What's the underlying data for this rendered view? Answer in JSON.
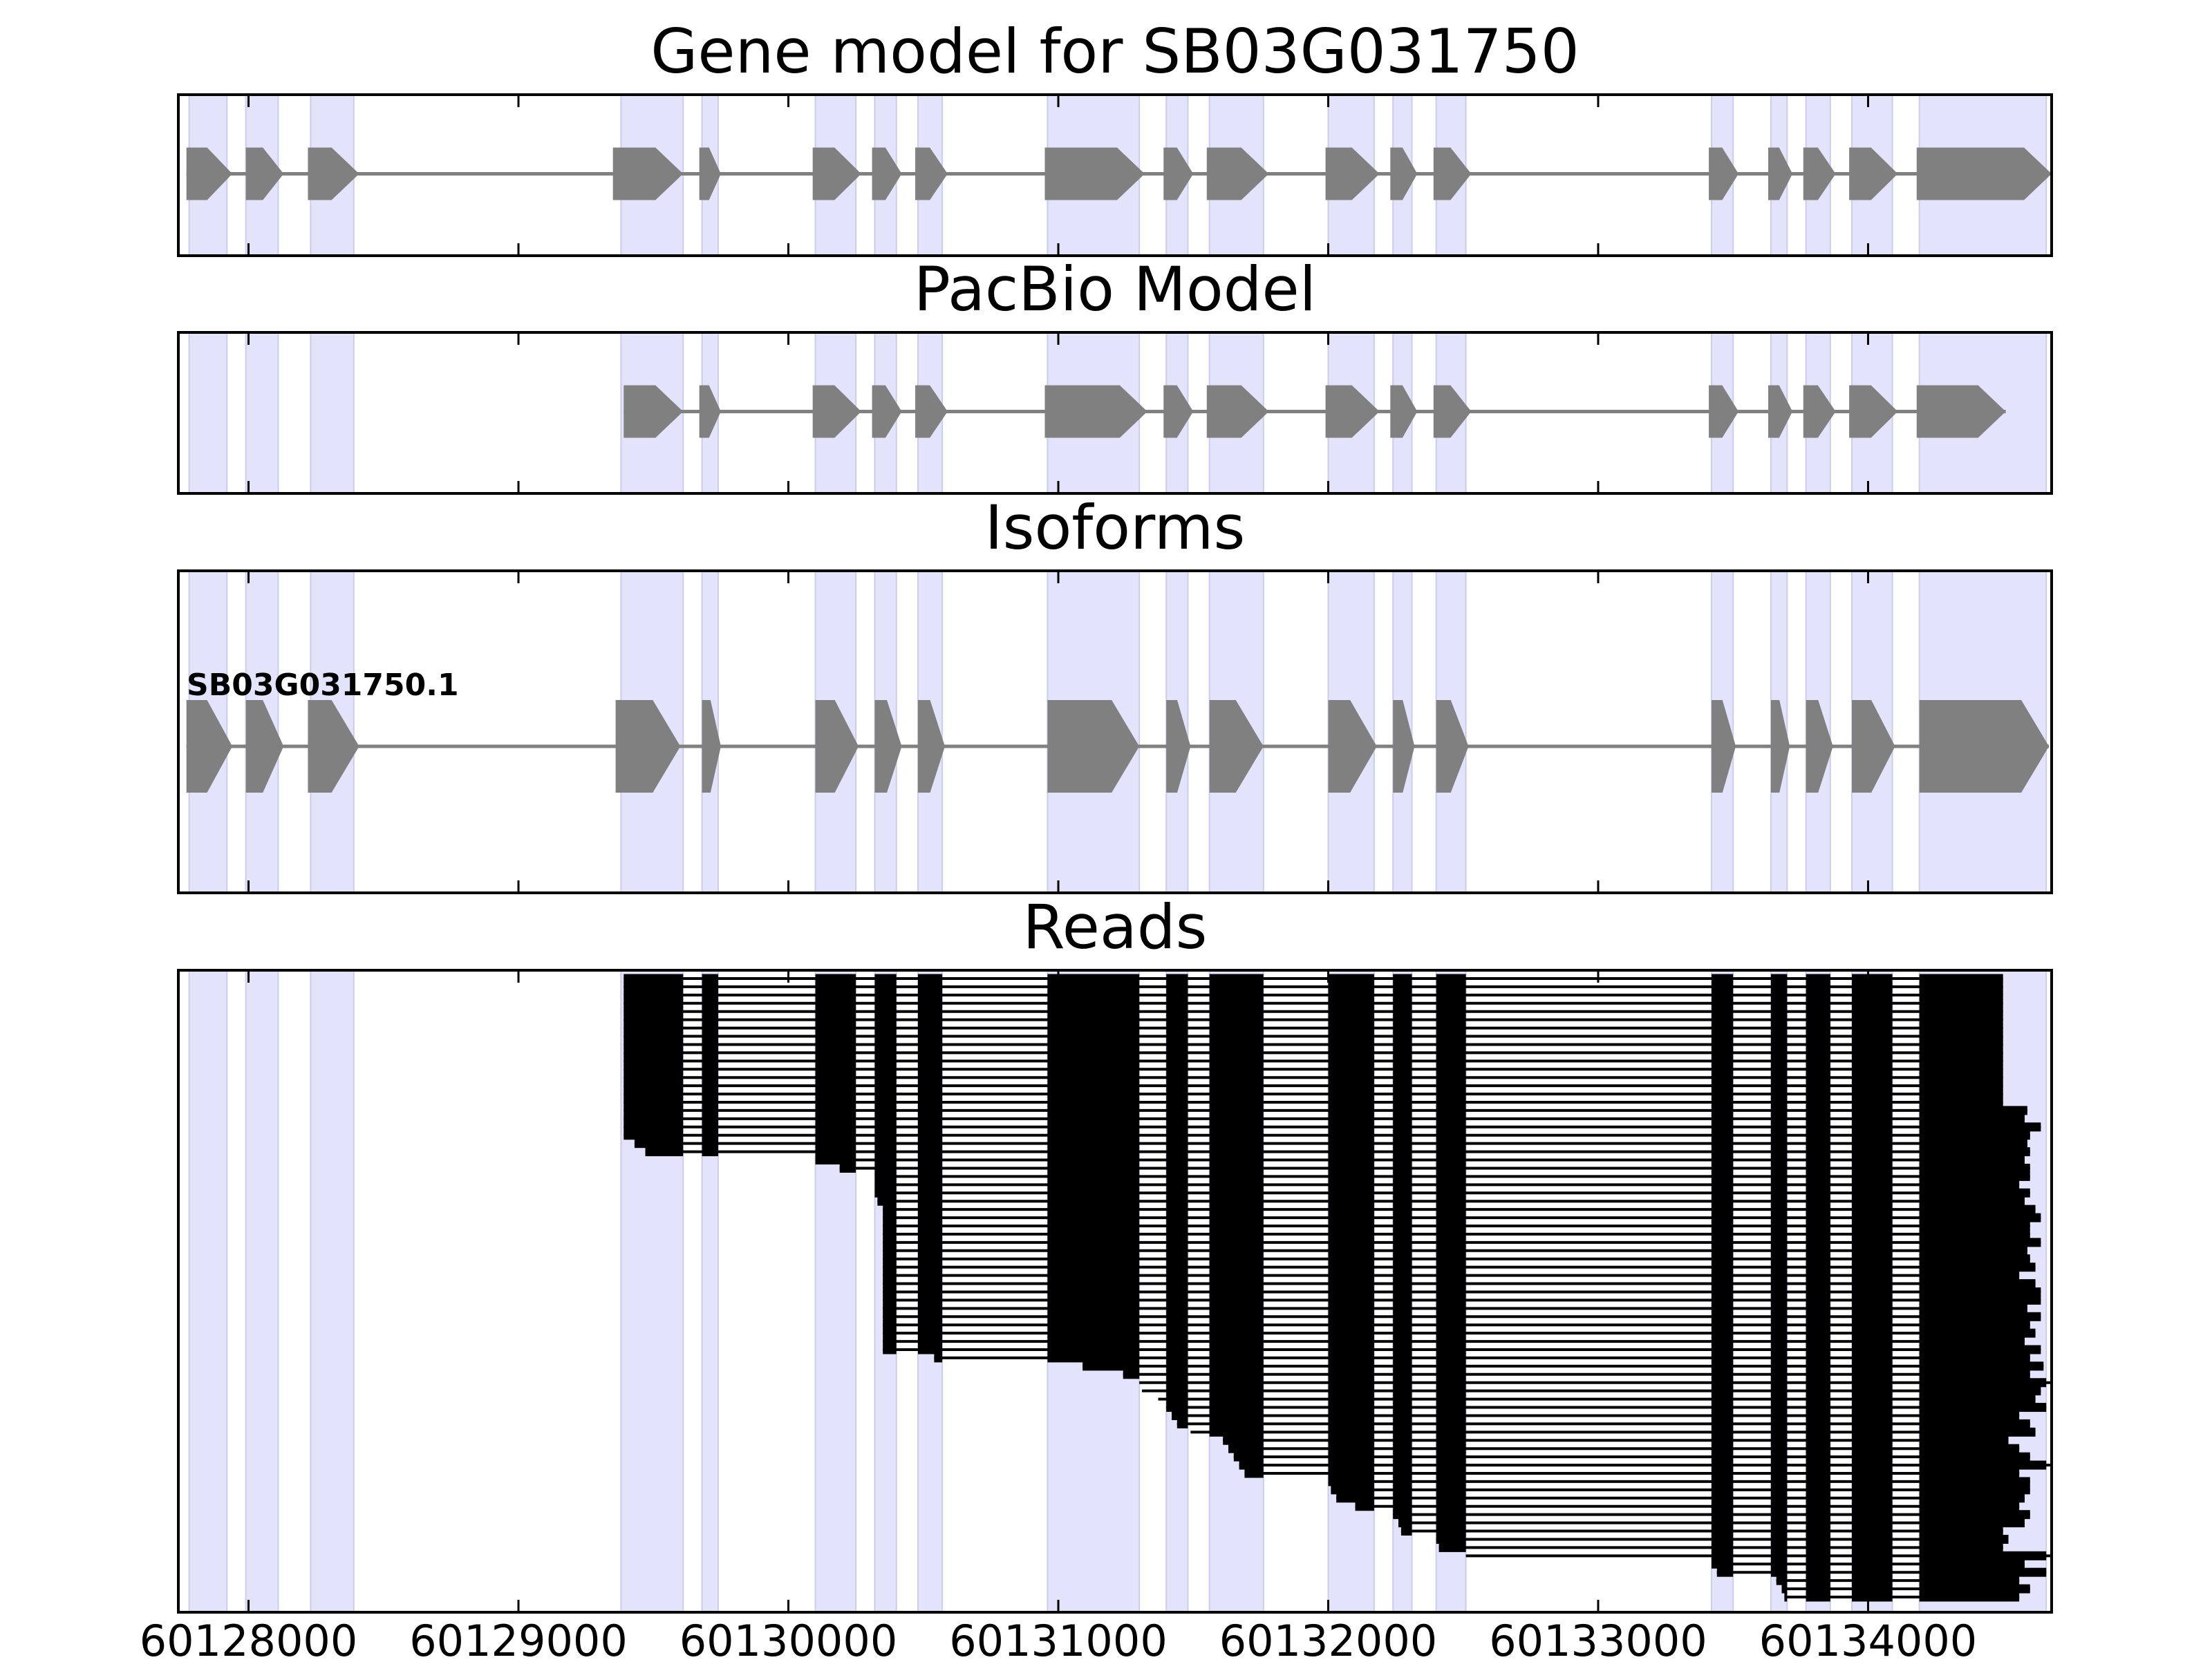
{
  "chart_data": {
    "type": "gene-structure",
    "xlim": [
      60127740,
      60134680
    ],
    "xticks": [
      60128000,
      60129000,
      60130000,
      60131000,
      60132000,
      60133000,
      60134000
    ],
    "xtick_labels": [
      "60128000",
      "60129000",
      "60130000",
      "60131000",
      "60132000",
      "60133000",
      "60134000"
    ],
    "colors": {
      "exon": "#808080",
      "intron": "#808080",
      "shade": "#e3e3fb",
      "shade_edge": "#ccccee",
      "read": "#000000",
      "axes": "#000000"
    },
    "exon_regions": [
      [
        60127780,
        60127920
      ],
      [
        60127990,
        60128110
      ],
      [
        60128230,
        60128390
      ],
      [
        60129380,
        60129610
      ],
      [
        60129680,
        60129740
      ],
      [
        60130100,
        60130250
      ],
      [
        60130320,
        60130400
      ],
      [
        60130480,
        60130570
      ],
      [
        60130960,
        60131300
      ],
      [
        60131400,
        60131480
      ],
      [
        60131560,
        60131760
      ],
      [
        60132000,
        60132170
      ],
      [
        60132240,
        60132310
      ],
      [
        60132400,
        60132510
      ],
      [
        60133420,
        60133500
      ],
      [
        60133640,
        60133700
      ],
      [
        60133770,
        60133860
      ],
      [
        60133940,
        60134090
      ],
      [
        60134190,
        60134660
      ]
    ],
    "panels": [
      {
        "title": "Gene model for SB03G031750",
        "exons": [
          [
            60127770,
            60127940
          ],
          [
            60127990,
            60128130
          ],
          [
            60128220,
            60128410
          ],
          [
            60129350,
            60129610
          ],
          [
            60129670,
            60129750
          ],
          [
            60130090,
            60130270
          ],
          [
            60130310,
            60130420
          ],
          [
            60130470,
            60130590
          ],
          [
            60130950,
            60131320
          ],
          [
            60131390,
            60131500
          ],
          [
            60131550,
            60131780
          ],
          [
            60131990,
            60132190
          ],
          [
            60132230,
            60132330
          ],
          [
            60132390,
            60132530
          ],
          [
            60133410,
            60133520
          ],
          [
            60133630,
            60133720
          ],
          [
            60133760,
            60133880
          ],
          [
            60133930,
            60134110
          ],
          [
            60134180,
            60134680
          ]
        ]
      },
      {
        "title": "PacBio Model",
        "exons": [
          [
            60129390,
            60129610
          ],
          [
            60129670,
            60129750
          ],
          [
            60130090,
            60130270
          ],
          [
            60130310,
            60130420
          ],
          [
            60130470,
            60130590
          ],
          [
            60130950,
            60131330
          ],
          [
            60131390,
            60131500
          ],
          [
            60131550,
            60131780
          ],
          [
            60131990,
            60132190
          ],
          [
            60132230,
            60132330
          ],
          [
            60132390,
            60132530
          ],
          [
            60133410,
            60133520
          ],
          [
            60133630,
            60133720
          ],
          [
            60133760,
            60133880
          ],
          [
            60133930,
            60134110
          ],
          [
            60134180,
            60134510
          ]
        ]
      },
      {
        "title": "Isoforms",
        "isoform_name": "SB03G031750.1",
        "exons": [
          [
            60127770,
            60127940
          ],
          [
            60127990,
            60128130
          ],
          [
            60128220,
            60128410
          ],
          [
            60129360,
            60129600
          ],
          [
            60129680,
            60129750
          ],
          [
            60130100,
            60130260
          ],
          [
            60130320,
            60130420
          ],
          [
            60130480,
            60130580
          ],
          [
            60130960,
            60131300
          ],
          [
            60131400,
            60131490
          ],
          [
            60131560,
            60131760
          ],
          [
            60132000,
            60132180
          ],
          [
            60132240,
            60132320
          ],
          [
            60132400,
            60132520
          ],
          [
            60133420,
            60133510
          ],
          [
            60133640,
            60133710
          ],
          [
            60133770,
            60133870
          ],
          [
            60133940,
            60134100
          ],
          [
            60134190,
            60134670
          ]
        ]
      },
      {
        "title": "Reads",
        "read_count": 76,
        "read_start_x": [
          60129390,
          60129390,
          60129390,
          60129390,
          60129390,
          60129390,
          60129390,
          60129390,
          60129390,
          60129390,
          60129390,
          60129390,
          60129390,
          60129390,
          60129390,
          60129390,
          60129390,
          60129390,
          60129390,
          60129390,
          60129430,
          60129470,
          60130100,
          60130190,
          60130320,
          60130320,
          60130320,
          60130330,
          60130350,
          60130350,
          60130350,
          60130350,
          60130350,
          60130350,
          60130350,
          60130350,
          60130350,
          60130350,
          60130350,
          60130350,
          60130350,
          60130350,
          60130350,
          60130350,
          60130350,
          60130350,
          60130540,
          60131090,
          60131240,
          60131300,
          60131310,
          60131370,
          60131400,
          60131420,
          60131440,
          60131490,
          60131610,
          60131630,
          60131650,
          60131670,
          60131690,
          60132000,
          60132010,
          60132030,
          60132100,
          60132240,
          60132260,
          60132270,
          60132400,
          60132410,
          60132510,
          60133420,
          60133440,
          60133660,
          60133680,
          60133690
        ],
        "read_end_x": [
          60134500,
          60134500,
          60134500,
          60134500,
          60134500,
          60134500,
          60134500,
          60134500,
          60134500,
          60134500,
          60134500,
          60134500,
          60134500,
          60134500,
          60134500,
          60134500,
          60134590,
          60134580,
          60134640,
          60134600,
          60134590,
          60134600,
          60134580,
          60134600,
          60134600,
          60134560,
          60134600,
          60134580,
          60134620,
          60134640,
          60134600,
          60134600,
          60134640,
          60134590,
          60134600,
          60134620,
          60134560,
          60134620,
          60134640,
          60134640,
          60134590,
          60134640,
          60134600,
          60134620,
          60134580,
          60134640,
          60134600,
          60134650,
          60134600,
          60134680,
          60134640,
          60134620,
          60134660,
          60134560,
          60134600,
          60134620,
          60134520,
          60134560,
          60134600,
          60134680,
          60134560,
          60134600,
          60134600,
          60134580,
          60134560,
          60134600,
          60134580,
          60134500,
          60134520,
          60134500,
          60134680,
          60134580,
          60134660,
          60134560,
          60134600,
          60134560
        ]
      }
    ]
  }
}
